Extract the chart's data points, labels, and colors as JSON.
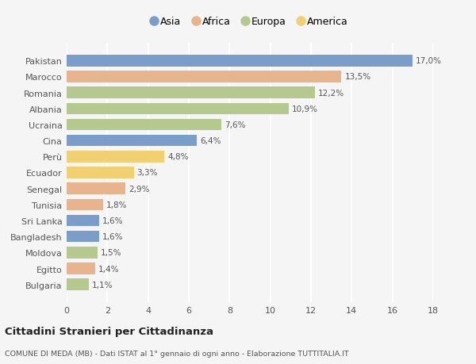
{
  "categories": [
    "Bulgaria",
    "Egitto",
    "Moldova",
    "Bangladesh",
    "Sri Lanka",
    "Tunisia",
    "Senegal",
    "Ecuador",
    "Perù",
    "Cina",
    "Ucraina",
    "Albania",
    "Romania",
    "Marocco",
    "Pakistan"
  ],
  "values": [
    1.1,
    1.4,
    1.5,
    1.6,
    1.6,
    1.8,
    2.9,
    3.3,
    4.8,
    6.4,
    7.6,
    10.9,
    12.2,
    13.5,
    17.0
  ],
  "labels": [
    "1,1%",
    "1,4%",
    "1,5%",
    "1,6%",
    "1,6%",
    "1,8%",
    "2,9%",
    "3,3%",
    "4,8%",
    "6,4%",
    "7,6%",
    "10,9%",
    "12,2%",
    "13,5%",
    "17,0%"
  ],
  "continents": [
    "Europa",
    "Africa",
    "Europa",
    "Asia",
    "Asia",
    "Africa",
    "Africa",
    "America",
    "America",
    "Asia",
    "Europa",
    "Europa",
    "Europa",
    "Africa",
    "Asia"
  ],
  "colors": {
    "Asia": "#7b9dc9",
    "Africa": "#e8b48e",
    "Europa": "#b5c98e",
    "America": "#f0d070"
  },
  "legend_order": [
    "Asia",
    "Africa",
    "Europa",
    "America"
  ],
  "bg_color": "#f5f5f5",
  "grid_color": "#ffffff",
  "title": "Cittadini Stranieri per Cittadinanza",
  "subtitle": "COMUNE DI MEDA (MB) - Dati ISTAT al 1° gennaio di ogni anno - Elaborazione TUTTITALIA.IT",
  "xlim": [
    0,
    18
  ],
  "xticks": [
    0,
    2,
    4,
    6,
    8,
    10,
    12,
    14,
    16,
    18
  ]
}
